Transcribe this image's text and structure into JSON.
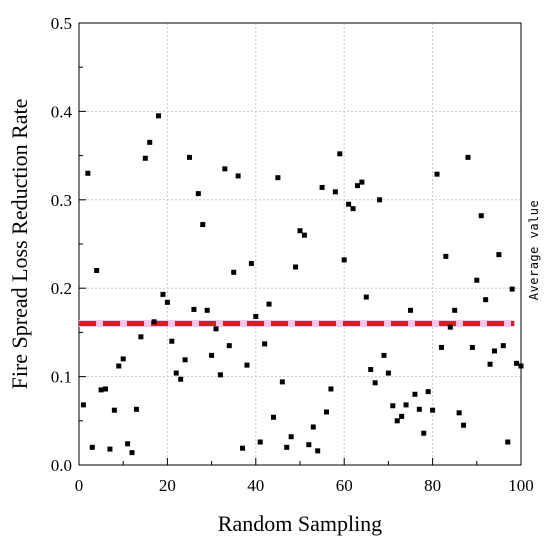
{
  "chart_data": {
    "type": "scatter",
    "title": "",
    "xlabel": "Random Sampling",
    "ylabel": "Fire Spread Loss Reduction Rate",
    "xlim": [
      0,
      100
    ],
    "ylim": [
      0,
      0.5
    ],
    "xticks": [
      "0",
      "20",
      "40",
      "60",
      "80",
      "100"
    ],
    "yticks": [
      "0.0",
      "0.1",
      "0.2",
      "0.3",
      "0.4",
      "0.5"
    ],
    "grid": true,
    "marker_color": "#000000",
    "series": [
      {
        "x": [
          1,
          2,
          3,
          4,
          5,
          6,
          7,
          8,
          9,
          10,
          11,
          12,
          13,
          14,
          15,
          16,
          17,
          18,
          19,
          20,
          21,
          22,
          23,
          24,
          25,
          26,
          27,
          28,
          29,
          30,
          31,
          32,
          33,
          34,
          35,
          36,
          37,
          38,
          39,
          40,
          41,
          42,
          43,
          44,
          45,
          46,
          47,
          48,
          49,
          50,
          51,
          52,
          53,
          54,
          55,
          56,
          57,
          58,
          59,
          60,
          61,
          62,
          63,
          64,
          65,
          66,
          67,
          68,
          69,
          70,
          71,
          72,
          73,
          74,
          75,
          76,
          77,
          78,
          79,
          80,
          81,
          82,
          83,
          84,
          85,
          86,
          87,
          88,
          89,
          90,
          91,
          92,
          93,
          94,
          95,
          96,
          97,
          98,
          99,
          100
        ],
        "y": [
          0.068,
          0.33,
          0.02,
          0.22,
          0.085,
          0.086,
          0.018,
          0.062,
          0.112,
          0.12,
          0.024,
          0.014,
          0.063,
          0.145,
          0.347,
          0.365,
          0.162,
          0.395,
          0.193,
          0.184,
          0.14,
          0.104,
          0.097,
          0.119,
          0.348,
          0.176,
          0.307,
          0.272,
          0.175,
          0.124,
          0.154,
          0.102,
          0.335,
          0.135,
          0.218,
          0.327,
          0.019,
          0.113,
          0.228,
          0.168,
          0.026,
          0.137,
          0.182,
          0.054,
          0.325,
          0.094,
          0.02,
          0.032,
          0.224,
          0.265,
          0.26,
          0.023,
          0.043,
          0.016,
          0.314,
          0.06,
          0.086,
          0.309,
          0.352,
          0.232,
          0.295,
          0.29,
          0.316,
          0.32,
          0.19,
          0.108,
          0.093,
          0.3,
          0.124,
          0.104,
          0.067,
          0.05,
          0.055,
          0.068,
          0.175,
          0.08,
          0.063,
          0.036,
          0.083,
          0.062,
          0.329,
          0.133,
          0.236,
          0.156,
          0.175,
          0.059,
          0.045,
          0.348,
          0.133,
          0.209,
          0.282,
          0.187,
          0.114,
          0.129,
          0.238,
          0.135,
          0.026,
          0.199,
          0.115,
          0.112
        ]
      }
    ],
    "reference_line": {
      "label": "Average value",
      "y": 0.16,
      "color": "#d42020",
      "highlight_color": "#f3c6ea"
    }
  }
}
